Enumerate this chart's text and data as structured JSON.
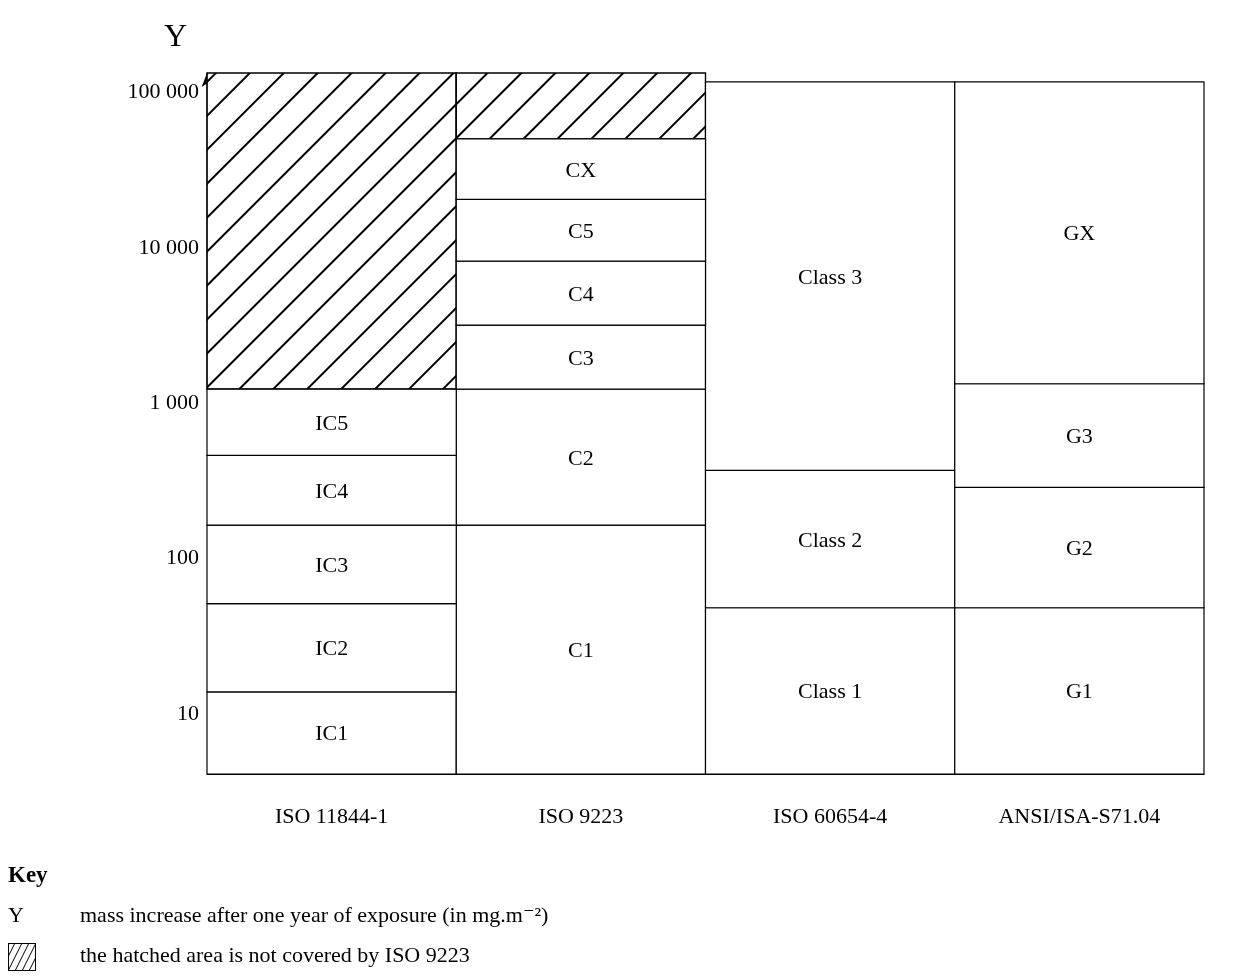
{
  "chart_data": {
    "type": "bar",
    "ylabel": "Y",
    "categories": [
      "ISO 11844-1",
      "ISO 9223",
      "ISO 60654-4",
      "ANSI/ISA-S71.04"
    ],
    "log": true,
    "ylim": [
      4,
      130000
    ],
    "yticks": [
      10,
      100,
      {
        "value": 1000,
        "label": "1 000"
      },
      {
        "value": 10000,
        "label": "10 000"
      },
      {
        "value": 100000,
        "label": "100 000"
      }
    ],
    "series": [
      {
        "color": "#ffffff",
        "base": [
          4,
          4,
          4,
          4
        ],
        "values": [
          9.5,
          156,
          43,
          43
        ],
        "value_labels": [
          "IC1",
          "C1",
          "Class 1",
          "G1"
        ]
      },
      {
        "color": "#ffffff",
        "base": [
          13.5,
          160,
          47,
          47
        ],
        "values": [
          36.5,
          1040,
          313,
          233
        ],
        "value_labels": [
          "IC2",
          "C2",
          "Class 2",
          "G2"
        ]
      },
      {
        "color": "#ffffff",
        "base": [
          50,
          1200,
          360,
          280
        ],
        "values": [
          110,
          1900,
          113640,
          1020
        ],
        "value_labels": [
          "IC3",
          "C3",
          "Class 3",
          "G3"
        ]
      },
      {
        "color": "#ffffff",
        "base": [
          160,
          3100,
          null,
          1300
        ],
        "values": [
          290,
          4900,
          null,
          112700
        ],
        "value_labels": [
          "IC4",
          "C4",
          null,
          "GX"
        ]
      },
      {
        "color": "#ffffff",
        "base": [
          450,
          8000,
          null,
          null
        ],
        "values": [
          750,
          12000,
          null,
          null
        ],
        "value_labels": [
          "IC5",
          "C5",
          null,
          null
        ]
      },
      {
        "color": "#ffffff",
        "base": [
          null,
          20000,
          null,
          null
        ],
        "values": [
          null,
          29000,
          null,
          null
        ],
        "value_labels": [
          null,
          "CX",
          null,
          null
        ]
      },
      {
        "color": "#000000",
        "base": [
          1200,
          49000,
          null,
          null
        ],
        "values": [
          128800,
          81000,
          null,
          null
        ]
      }
    ],
    "annotations": [
      "Key",
      "Y",
      "mass increase after one year of exposure (in mg.m⁻²)",
      "the hatched area is not covered by ISO 9223"
    ]
  }
}
